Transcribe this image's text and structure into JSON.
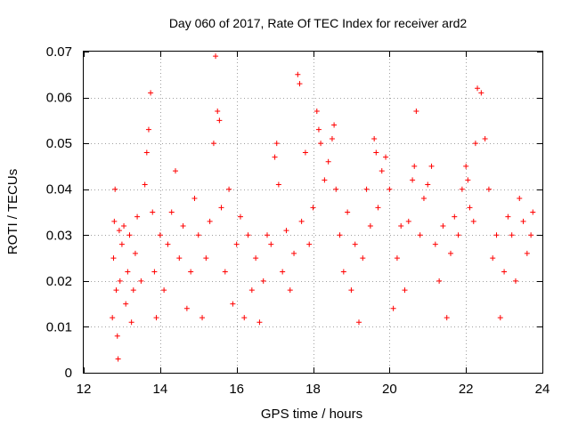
{
  "chart_data": {
    "type": "scatter",
    "title": "Day 060 of 2017, Rate Of TEC Index for receiver ard2",
    "xlabel": "GPS time / hours",
    "ylabel": "ROTI / TECUs",
    "xlim": [
      12,
      24
    ],
    "ylim": [
      0,
      0.07
    ],
    "x_ticks": [
      12,
      14,
      16,
      18,
      20,
      22,
      24
    ],
    "y_ticks": [
      0,
      0.01,
      0.02,
      0.03,
      0.04,
      0.05,
      0.06,
      0.07
    ],
    "x_tick_labels": [
      "12",
      "14",
      "16",
      "18",
      "20",
      "22",
      "24"
    ],
    "y_tick_labels": [
      "0",
      "0.01",
      "0.02",
      "0.03",
      "0.04",
      "0.05",
      "0.06",
      "0.07"
    ],
    "grid": true,
    "marker": "plus",
    "marker_color": "#ff0000",
    "series": [
      {
        "x": [
          12.75,
          12.78,
          12.8,
          12.82,
          12.85,
          12.88,
          12.9,
          12.93,
          12.95,
          13.0,
          13.05,
          13.1,
          13.15,
          13.2,
          13.25,
          13.3,
          13.35,
          13.4,
          13.5,
          13.6,
          13.65,
          13.7,
          13.75,
          13.8,
          13.85,
          13.9,
          14.0,
          14.1,
          14.2,
          14.3,
          14.4,
          14.5,
          14.6,
          14.7,
          14.8,
          14.9,
          15.0,
          15.1,
          15.2,
          15.3,
          15.4,
          15.45,
          15.5,
          15.55,
          15.6,
          15.7,
          15.8,
          15.9,
          16.0,
          16.1,
          16.2,
          16.3,
          16.4,
          16.5,
          16.6,
          16.7,
          16.8,
          16.9,
          17.0,
          17.05,
          17.1,
          17.2,
          17.3,
          17.4,
          17.5,
          17.6,
          17.65,
          17.7,
          17.8,
          17.9,
          18.0,
          18.1,
          18.15,
          18.2,
          18.3,
          18.4,
          18.5,
          18.55,
          18.6,
          18.7,
          18.8,
          18.9,
          19.0,
          19.1,
          19.2,
          19.3,
          19.4,
          19.5,
          19.6,
          19.65,
          19.7,
          19.8,
          19.9,
          20.0,
          20.1,
          20.2,
          20.3,
          20.4,
          20.5,
          20.6,
          20.65,
          20.7,
          20.8,
          20.9,
          21.0,
          21.1,
          21.2,
          21.3,
          21.4,
          21.5,
          21.6,
          21.7,
          21.8,
          21.9,
          22.0,
          22.05,
          22.1,
          22.2,
          22.25,
          22.3,
          22.4,
          22.5,
          22.6,
          22.7,
          22.8,
          22.9,
          23.0,
          23.1,
          23.2,
          23.3,
          23.4,
          23.5,
          23.6,
          23.7,
          23.75
        ],
        "y": [
          0.012,
          0.025,
          0.033,
          0.04,
          0.018,
          0.008,
          0.003,
          0.031,
          0.02,
          0.028,
          0.032,
          0.015,
          0.022,
          0.03,
          0.011,
          0.018,
          0.026,
          0.034,
          0.02,
          0.041,
          0.048,
          0.053,
          0.061,
          0.035,
          0.022,
          0.012,
          0.03,
          0.018,
          0.028,
          0.035,
          0.044,
          0.025,
          0.032,
          0.014,
          0.022,
          0.038,
          0.03,
          0.012,
          0.025,
          0.033,
          0.05,
          0.069,
          0.057,
          0.055,
          0.036,
          0.022,
          0.04,
          0.015,
          0.028,
          0.034,
          0.012,
          0.03,
          0.018,
          0.025,
          0.011,
          0.02,
          0.03,
          0.028,
          0.047,
          0.05,
          0.041,
          0.022,
          0.031,
          0.018,
          0.026,
          0.065,
          0.063,
          0.033,
          0.048,
          0.028,
          0.036,
          0.057,
          0.053,
          0.05,
          0.042,
          0.046,
          0.051,
          0.054,
          0.04,
          0.03,
          0.022,
          0.035,
          0.018,
          0.028,
          0.011,
          0.025,
          0.04,
          0.032,
          0.051,
          0.048,
          0.036,
          0.044,
          0.047,
          0.04,
          0.014,
          0.025,
          0.032,
          0.018,
          0.033,
          0.042,
          0.045,
          0.057,
          0.03,
          0.038,
          0.041,
          0.045,
          0.028,
          0.02,
          0.032,
          0.012,
          0.026,
          0.034,
          0.03,
          0.04,
          0.045,
          0.042,
          0.036,
          0.033,
          0.05,
          0.062,
          0.061,
          0.051,
          0.04,
          0.025,
          0.03,
          0.012,
          0.022,
          0.034,
          0.03,
          0.02,
          0.038,
          0.033,
          0.026,
          0.03,
          0.035
        ]
      }
    ]
  }
}
